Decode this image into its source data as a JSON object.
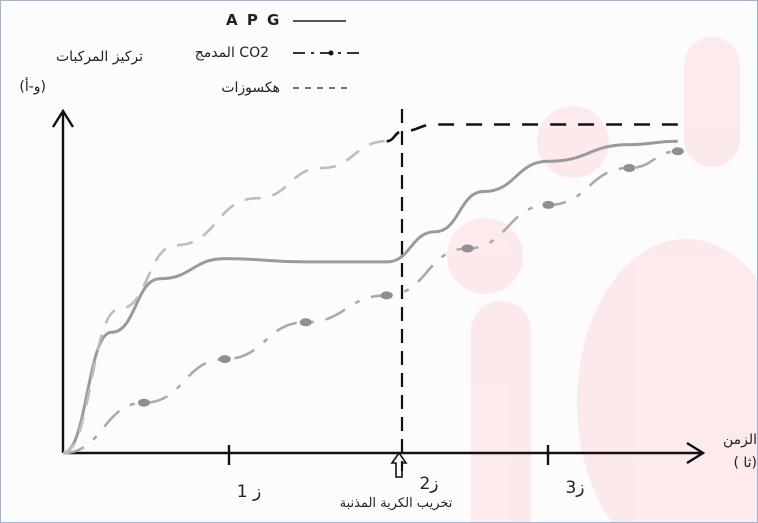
{
  "chart_data": {
    "type": "line",
    "ylabel": "تركيز المركبات",
    "ylabel_unit": "(و-أ)",
    "xlabel": "الزمن",
    "xlabel_unit": "( ثا)",
    "legend_placement": "top",
    "x_ticks": [
      {
        "label": "ز 1",
        "x": 1
      },
      {
        "label": "ز2",
        "x": 2
      },
      {
        "label": "ز3",
        "x": 3
      }
    ],
    "event_marker": {
      "x": 2,
      "label": "تخريب الكرية المذنبة"
    },
    "xlim": [
      0,
      3.9
    ],
    "ylim": [
      0,
      1.05
    ],
    "series": [
      {
        "name": "A P G",
        "style": "solid",
        "color": "#9a9a9a",
        "points": [
          [
            0,
            0
          ],
          [
            0.3,
            0.36
          ],
          [
            0.6,
            0.52
          ],
          [
            1,
            0.58
          ],
          [
            1.5,
            0.57
          ],
          [
            2,
            0.57
          ],
          [
            2.3,
            0.66
          ],
          [
            2.6,
            0.78
          ],
          [
            3.0,
            0.87
          ],
          [
            3.5,
            0.92
          ],
          [
            3.8,
            0.93
          ]
        ]
      },
      {
        "name": "المدمج CO2",
        "style": "dash-dot",
        "color": "#aaaaaa",
        "points": [
          [
            0,
            0
          ],
          [
            0.5,
            0.15
          ],
          [
            1,
            0.28
          ],
          [
            1.5,
            0.39
          ],
          [
            2,
            0.47
          ],
          [
            2.5,
            0.61
          ],
          [
            3,
            0.74
          ],
          [
            3.5,
            0.85
          ],
          [
            3.8,
            0.9
          ]
        ]
      },
      {
        "name": "هكسوزات",
        "style": "dashed",
        "color": "#bdbdbd",
        "points": [
          [
            0,
            0
          ],
          [
            0.35,
            0.43
          ],
          [
            0.7,
            0.62
          ],
          [
            1.2,
            0.76
          ],
          [
            1.6,
            0.85
          ],
          [
            2,
            0.93
          ]
        ]
      },
      {
        "name": "هكسوزات",
        "style": "dashed",
        "color": "#111111",
        "points": [
          [
            2,
            0.93
          ],
          [
            2.1,
            0.96
          ],
          [
            2.3,
            0.98
          ],
          [
            3,
            0.98
          ],
          [
            3.8,
            0.98
          ]
        ]
      }
    ]
  }
}
